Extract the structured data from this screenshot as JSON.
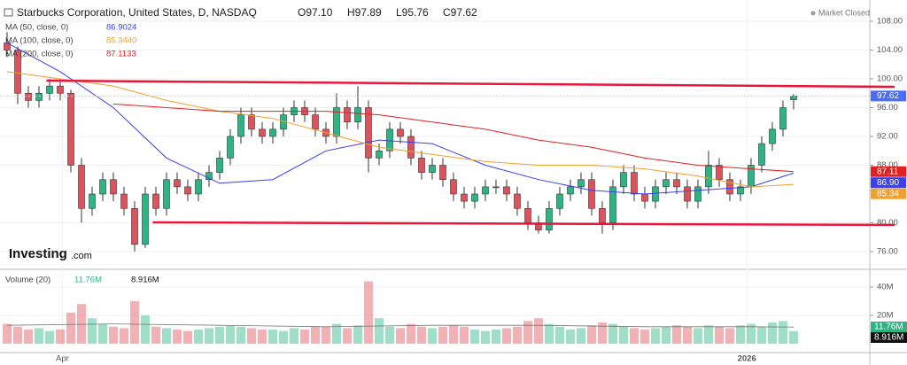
{
  "logo": {
    "brand": "Investing",
    "suffix": ".com"
  },
  "chart_data": [
    {
      "type": "candlestick",
      "title": "Starbucks Corporation, United States, D, NASDAQ",
      "ohlc_labels": [
        "O97.10",
        "H97.89",
        "L95.76",
        "C97.62"
      ],
      "status": "Market Closed",
      "open": [
        105,
        104,
        98,
        97,
        98,
        99,
        98,
        88,
        82,
        84,
        86,
        84,
        82,
        77,
        84,
        82,
        86,
        85,
        84,
        86,
        87,
        89,
        92,
        95,
        93,
        92,
        93,
        95,
        96,
        95,
        93,
        92,
        96,
        94,
        96,
        89,
        90,
        93,
        92,
        89,
        87,
        88,
        86,
        84,
        83,
        84,
        85,
        85,
        84,
        82,
        80,
        79,
        82,
        84,
        85,
        86,
        82,
        80,
        85,
        87,
        84,
        83,
        85,
        86,
        85,
        83,
        85,
        88,
        86,
        84,
        85,
        88,
        91,
        93,
        97.1
      ],
      "high": [
        106.5,
        104.5,
        99,
        99,
        100,
        100,
        98.5,
        89,
        85,
        87,
        87,
        85,
        83,
        85,
        85,
        87,
        87,
        86,
        87,
        88,
        90,
        93,
        96,
        96,
        94,
        94,
        96,
        97,
        97,
        96,
        94,
        98,
        97,
        99,
        97,
        91,
        94,
        94,
        93,
        90,
        89,
        89,
        87,
        85,
        85,
        86,
        86,
        86,
        85,
        83,
        81,
        83,
        85,
        86,
        87,
        87,
        83,
        86,
        88,
        88,
        85,
        86,
        87,
        87,
        86,
        86,
        90,
        89,
        87,
        86,
        89,
        92,
        94,
        97,
        97.89
      ],
      "low": [
        103,
        96.5,
        96,
        96,
        97,
        97,
        87,
        80,
        81,
        83,
        83,
        81,
        76,
        76.5,
        81,
        81,
        84,
        83,
        83,
        85,
        86,
        88,
        91,
        92,
        91,
        91,
        92,
        94,
        94,
        92,
        91,
        91,
        93,
        93,
        87,
        88,
        89,
        91,
        88,
        86,
        86,
        85,
        83,
        82,
        82,
        83,
        84,
        83,
        81,
        79,
        78.5,
        78.5,
        81,
        83,
        84,
        81,
        78.5,
        79,
        84,
        83,
        82,
        82,
        84,
        84,
        82,
        82,
        84,
        85,
        83,
        83,
        84,
        87,
        90,
        92,
        95.76
      ],
      "close": [
        104,
        98,
        97,
        98,
        99,
        98,
        88,
        82,
        84,
        86,
        84,
        82,
        77,
        84,
        82,
        86,
        85,
        84,
        86,
        87,
        89,
        92,
        95,
        93,
        92,
        93,
        95,
        96,
        95,
        93,
        92,
        96,
        94,
        96,
        89,
        90,
        93,
        92,
        89,
        87,
        88,
        86,
        84,
        83,
        84,
        85,
        85,
        84,
        82,
        80,
        79,
        82,
        84,
        85,
        86,
        82,
        80,
        85,
        87,
        84,
        83,
        85,
        86,
        85,
        83,
        85,
        88,
        86,
        84,
        85,
        88,
        91,
        93,
        96,
        97.62
      ],
      "up_color": "#2bb582",
      "down_color": "#e0525b",
      "last_label": "97.62",
      "last_color": "#4a6cf7",
      "overlays": [
        {
          "name": "MA (50, close, 0)",
          "color": "#3a3ff0",
          "x": [
            0,
            5,
            10,
            15,
            20,
            25,
            30,
            35,
            40,
            45,
            50,
            55,
            60,
            65,
            70,
            74
          ],
          "values": [
            105,
            101,
            96,
            89,
            85.5,
            86,
            90,
            91.5,
            91,
            88,
            86,
            84.5,
            84,
            84.5,
            85,
            86.9024
          ],
          "legend_value": "86.9024",
          "value_label": "86.90"
        },
        {
          "name": "MA (100, close, 0)",
          "color": "#f0a030",
          "x": [
            0,
            5,
            10,
            15,
            20,
            25,
            30,
            35,
            40,
            45,
            50,
            55,
            60,
            65,
            70,
            74
          ],
          "values": [
            101,
            100,
            99,
            97,
            95.5,
            94.5,
            92.5,
            90.5,
            89.5,
            88.5,
            88,
            88,
            87.5,
            86.5,
            85,
            85.344
          ],
          "legend_value": "85.3440",
          "value_label": "85.34"
        },
        {
          "name": "MA (200, close, 0)",
          "color": "#e02020",
          "x": [
            0,
            5,
            10,
            15,
            20,
            25,
            30,
            35,
            40,
            45,
            50,
            55,
            60,
            65,
            70,
            74
          ],
          "values": [
            null,
            null,
            96.5,
            96,
            95.5,
            95.5,
            95.5,
            95,
            94,
            93,
            91.5,
            90.5,
            89,
            88,
            87.5,
            87.1133
          ],
          "legend_value": "87.1133",
          "value_label": "87.11"
        }
      ],
      "trendlines": [
        {
          "color": "#e8173a",
          "x": [
            3.7,
            83.5
          ],
          "y": [
            99.75,
            98.9
          ]
        },
        {
          "color": "#e8173a",
          "x": [
            13.7,
            83.5
          ],
          "y": [
            80.06,
            79.7
          ]
        }
      ],
      "xlim": [
        -0.25,
        81.17
      ],
      "ylim": [
        74.03,
        110.34
      ],
      "yticks": [
        {
          "value": 108,
          "label": "108.00"
        },
        {
          "value": 104,
          "label": "104.00"
        },
        {
          "value": 100,
          "label": "100.00"
        },
        {
          "value": 96,
          "label": "96.00"
        },
        {
          "value": 92,
          "label": "92.00"
        },
        {
          "value": 88,
          "label": "88.00"
        },
        {
          "value": 80,
          "label": "80.00"
        },
        {
          "value": 76,
          "label": "76.00"
        }
      ],
      "xticks": [
        {
          "value": 5.2,
          "label": "Apr"
        },
        {
          "value": 69.6,
          "label": "2026"
        }
      ],
      "grid": true
    },
    {
      "type": "bar",
      "title": "Volume (20)",
      "values": [
        14,
        12,
        10,
        11,
        9,
        10,
        22,
        28,
        18,
        14,
        12,
        11,
        30,
        20,
        12,
        11,
        10,
        9,
        10,
        11,
        12,
        13,
        12,
        11,
        10,
        10,
        9,
        11,
        10,
        12,
        12,
        14,
        11,
        13,
        44,
        18,
        12,
        11,
        14,
        12,
        11,
        12,
        13,
        12,
        10,
        9,
        10,
        11,
        12,
        16,
        18,
        14,
        12,
        10,
        11,
        13,
        15,
        14,
        12,
        11,
        10,
        11,
        12,
        13,
        12,
        11,
        13,
        12,
        11,
        13,
        14,
        12,
        15,
        16,
        8.916
      ],
      "value_label": "8.916M",
      "label_color": "#111",
      "ma": {
        "color": "#2bb582",
        "x": [
          0,
          10,
          20,
          30,
          40,
          50,
          60,
          70,
          74
        ],
        "values": [
          13,
          14,
          13,
          12,
          13,
          13,
          12,
          12,
          11.76
        ],
        "value_label": "11.76M"
      },
      "ylim": [
        0,
        48.125
      ],
      "yticks": [
        {
          "value": 40,
          "label": "40M"
        },
        {
          "value": 20,
          "label": "20M"
        }
      ]
    }
  ]
}
